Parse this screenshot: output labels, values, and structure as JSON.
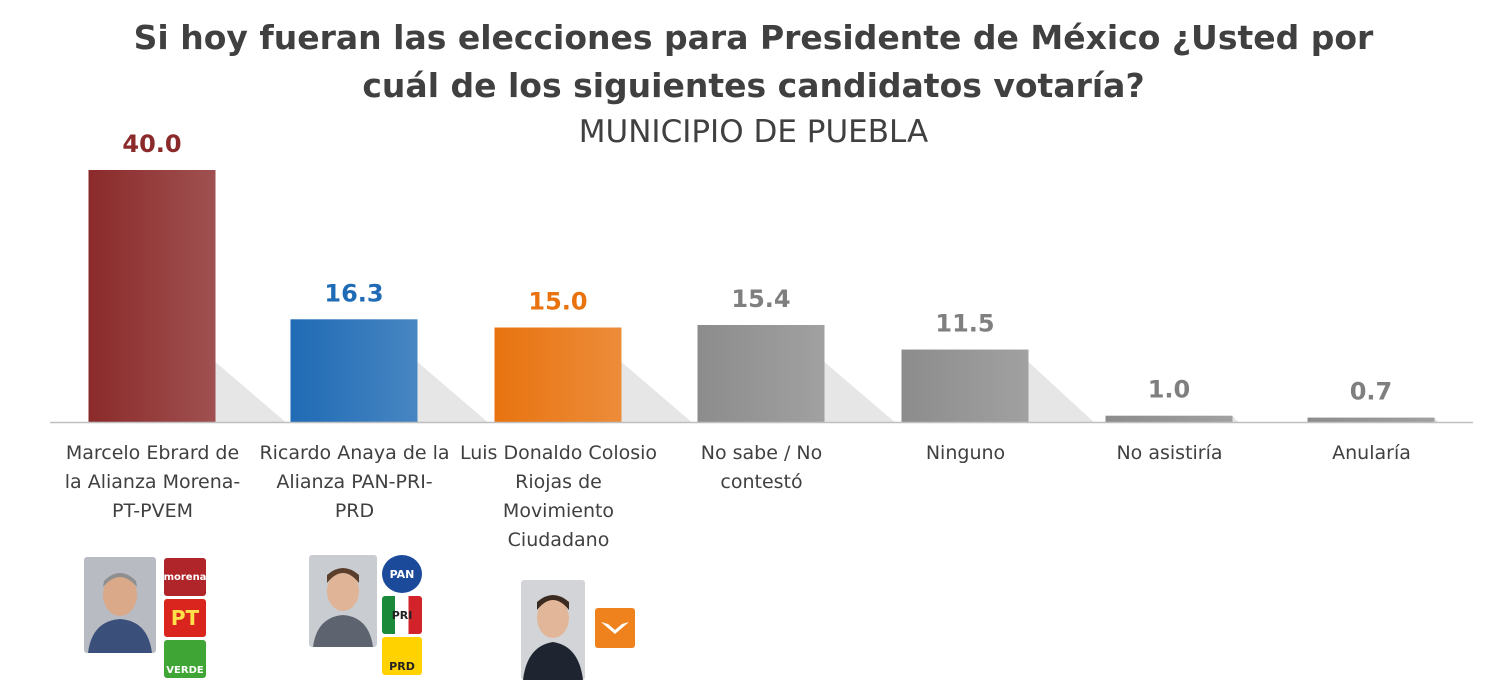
{
  "title_line1": "Si hoy fueran las elecciones para Presidente de México ¿Usted por",
  "title_line2": "cuál de los siguientes candidatos votaría?",
  "subtitle": "MUNICIPIO DE PUEBLA",
  "chart_data": {
    "type": "bar",
    "title": "Si hoy fueran las elecciones para Presidente de México ¿Usted por cuál de los siguientes candidatos votaría?",
    "subtitle": "MUNICIPIO DE PUEBLA",
    "categories": [
      "Marcelo Ebrard de la Alianza Morena-PT-PVEM",
      "Ricardo Anaya de la Alianza PAN-PRI-PRD",
      "Luis Donaldo Colosio Riojas de Movimiento Ciudadano",
      "No sabe / No contestó",
      "Ninguno",
      "No asistiría",
      "Anularía"
    ],
    "values": [
      40.0,
      16.3,
      15.0,
      15.4,
      11.5,
      1.0,
      0.7
    ],
    "value_labels": [
      "40.0",
      "16.3",
      "15.0",
      "15.4",
      "11.5",
      "1.0",
      "0.7"
    ],
    "colors": [
      "#8b2a2a",
      "#1f6bb5",
      "#e8730f",
      "#8c8c8c",
      "#8c8c8c",
      "#8c8c8c",
      "#8c8c8c"
    ],
    "label_colors": [
      "#8b2a2a",
      "#1f6bb5",
      "#e8730f",
      "#7f7f7f",
      "#7f7f7f",
      "#7f7f7f",
      "#7f7f7f"
    ],
    "grid": false,
    "legend": "none",
    "ylim": [
      0,
      40
    ]
  },
  "category_labels": [
    [
      "Marcelo Ebrard de",
      "la Alianza Morena-",
      "PT-PVEM"
    ],
    [
      "Ricardo Anaya de la",
      "Alianza PAN-PRI-",
      "PRD"
    ],
    [
      "Luis Donaldo Colosio",
      "Riojas de",
      "Movimiento",
      "Ciudadano"
    ],
    [
      "No sabe / No",
      "contestó"
    ],
    [
      "Ninguno"
    ],
    [
      "No asistiría"
    ],
    [
      "Anularía"
    ]
  ],
  "logos": {
    "morena": "morena",
    "pt": "PT",
    "verde": "VERDE",
    "pan": "PAN",
    "pri": "PRI",
    "prd": "PRD"
  }
}
